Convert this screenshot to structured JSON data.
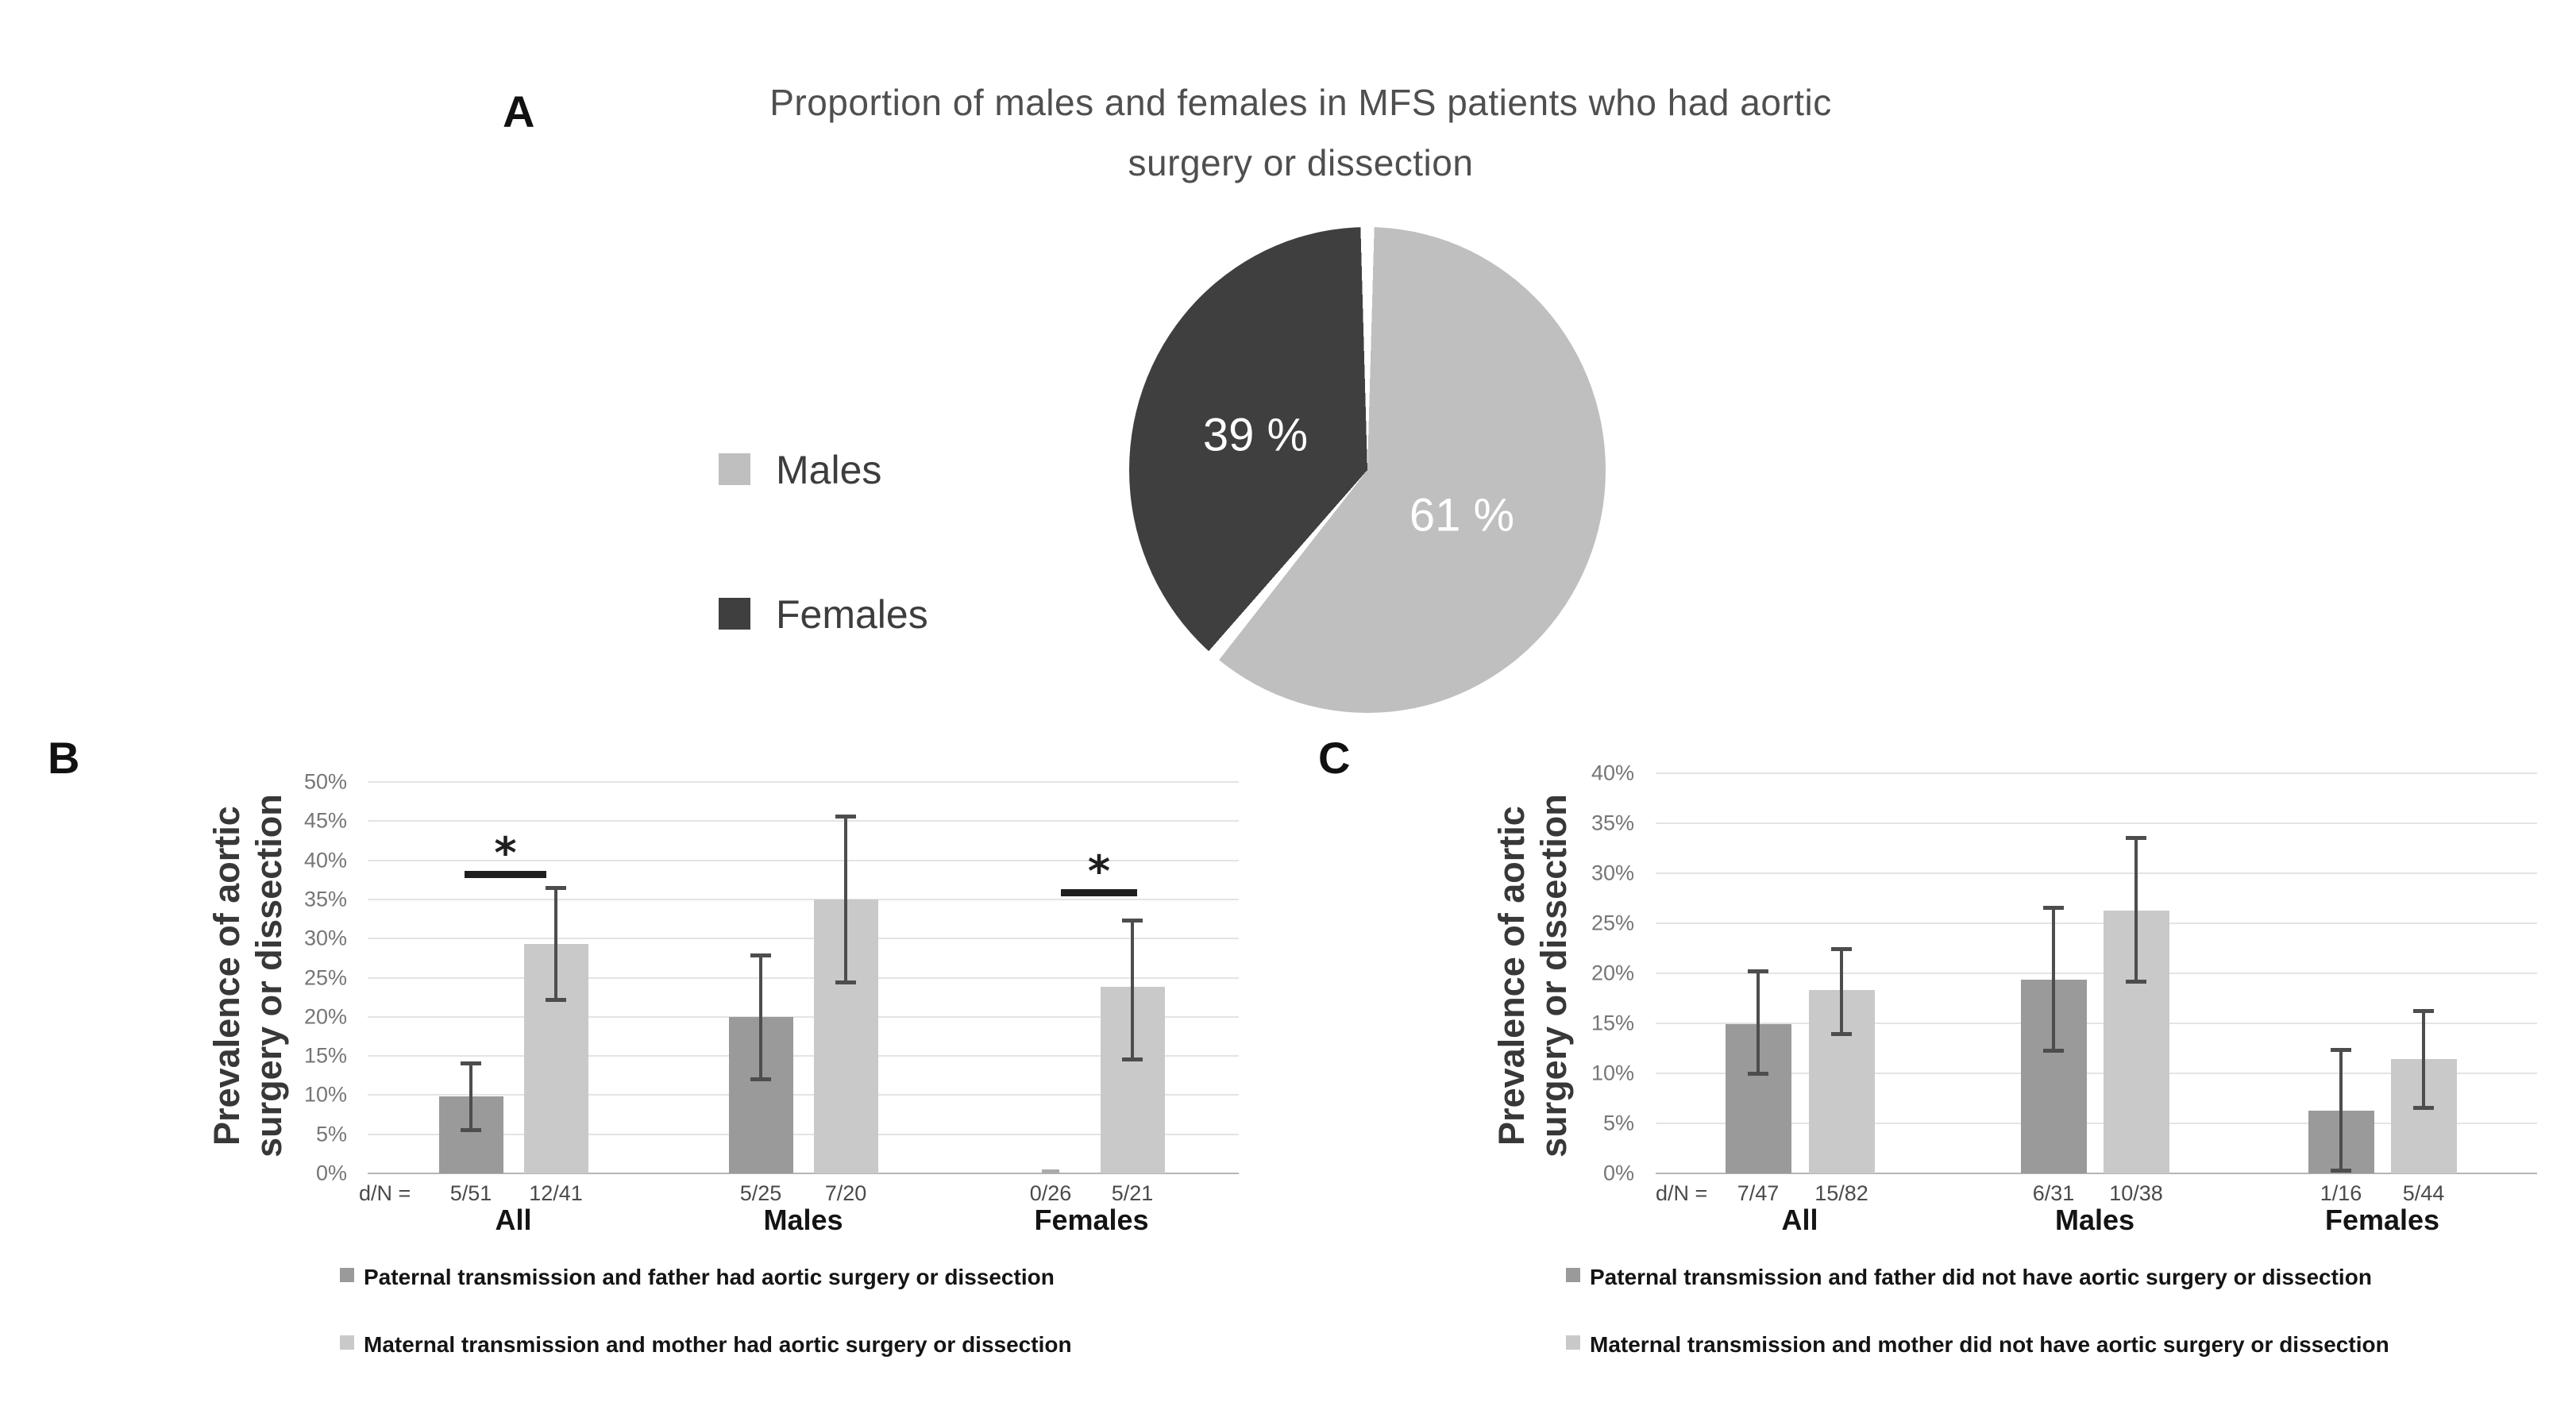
{
  "panelA": {
    "label": "A",
    "title_line1": "Proportion of males and females in MFS patients who had aortic",
    "title_line2": "surgery or dissection",
    "legend": [
      {
        "label": "Males",
        "color": "#bfbfbf"
      },
      {
        "label": "Females",
        "color": "#3f3f3f"
      }
    ]
  },
  "panelB": {
    "label": "B",
    "ylabel_line1": "Prevalence of aortic",
    "ylabel_line2": "surgery or dissection"
  },
  "panelC": {
    "label": "C",
    "ylabel_line1": "Prevalence of aortic",
    "ylabel_line2": "surgery or dissection"
  },
  "chart_data": [
    {
      "id": "pie",
      "type": "pie",
      "title": "Proportion of males and females in MFS patients who had aortic surgery or dissection",
      "labels": [
        "Males",
        "Females"
      ],
      "values": [
        61,
        39
      ],
      "display_labels": [
        "61 %",
        "39 %"
      ],
      "colors": [
        "#bfbfbf",
        "#3f3f3f"
      ],
      "legend_position": "left",
      "start_angle_deg": 0,
      "direction": "clockwise"
    },
    {
      "id": "B",
      "type": "bar",
      "ylabel": "Prevalence of aortic surgery or dissection",
      "ylim": [
        0,
        50
      ],
      "ytick_step": 5,
      "ytick_suffix": "%",
      "grid": true,
      "categories": [
        "All",
        "Males",
        "Females"
      ],
      "dn_prefix": "d/N =",
      "series": [
        {
          "name": "Paternal transmission and father had aortic surgery or dissection",
          "color": "#9a9a9a",
          "values_pct": [
            9.8,
            20.0,
            0.0
          ],
          "ci_low_pct": [
            5.6,
            12.1,
            null
          ],
          "ci_high_pct": [
            14.1,
            27.9,
            null
          ],
          "d_over_N": [
            "5/51",
            "5/25",
            "0/26"
          ]
        },
        {
          "name": "Maternal transmission and mother had aortic surgery or dissection",
          "color": "#c9c9c9",
          "values_pct": [
            29.3,
            35.0,
            23.8
          ],
          "ci_low_pct": [
            22.2,
            24.4,
            14.6
          ],
          "ci_high_pct": [
            36.5,
            45.6,
            32.4
          ],
          "d_over_N": [
            "12/41",
            "7/20",
            "5/21"
          ]
        }
      ],
      "significance": [
        {
          "category": "All",
          "symbol": "*"
        },
        {
          "category": "Females",
          "symbol": "*"
        }
      ],
      "legend_position": "bottom"
    },
    {
      "id": "C",
      "type": "bar",
      "ylabel": "Prevalence of aortic surgery or dissection",
      "ylim": [
        0,
        40
      ],
      "ytick_step": 5,
      "ytick_suffix": "%",
      "grid": true,
      "categories": [
        "All",
        "Males",
        "Females"
      ],
      "dn_prefix": "d/N =",
      "series": [
        {
          "name": "Paternal transmission and father did not have aortic surgery or dissection",
          "color": "#9a9a9a",
          "values_pct": [
            14.9,
            19.4,
            6.3
          ],
          "ci_low_pct": [
            10.0,
            12.3,
            0.3
          ],
          "ci_high_pct": [
            20.2,
            26.6,
            12.4
          ],
          "d_over_N": [
            "7/47",
            "6/31",
            "1/16"
          ]
        },
        {
          "name": "Maternal transmission and mother did not have aortic surgery or dissection",
          "color": "#c9c9c9",
          "values_pct": [
            18.3,
            26.3,
            11.4
          ],
          "ci_low_pct": [
            14.0,
            19.2,
            6.6
          ],
          "ci_high_pct": [
            22.5,
            33.6,
            16.3
          ],
          "d_over_N": [
            "15/82",
            "10/38",
            "5/44"
          ]
        }
      ],
      "significance": [],
      "legend_position": "bottom"
    }
  ]
}
